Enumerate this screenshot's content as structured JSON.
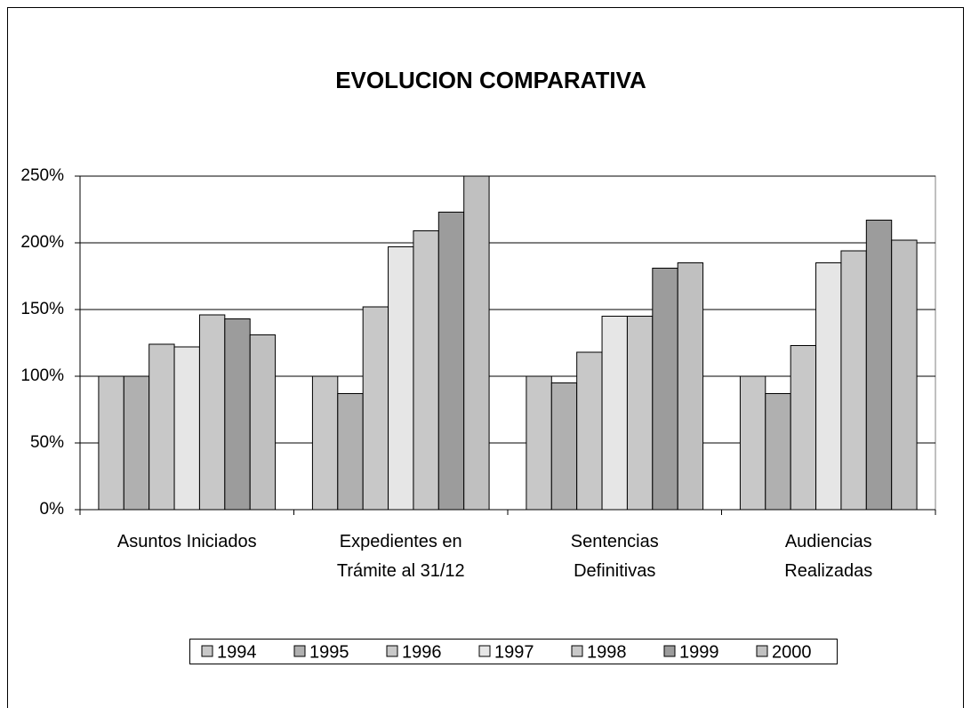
{
  "chart_data": {
    "type": "bar",
    "title": "EVOLUCION COMPARATIVA",
    "categories": [
      [
        "Asuntos Iniciados"
      ],
      [
        "Expedientes en",
        "Trámite al 31/12"
      ],
      [
        "Sentencias",
        "Definitivas"
      ],
      [
        "Audiencias",
        "Realizadas"
      ]
    ],
    "series": [
      {
        "name": "1994",
        "color": "#c8c8c8",
        "values": [
          100,
          100,
          100,
          100
        ]
      },
      {
        "name": "1995",
        "color": "#b0b0b0",
        "values": [
          100,
          87,
          95,
          87
        ]
      },
      {
        "name": "1996",
        "color": "#c8c8c8",
        "values": [
          124,
          152,
          118,
          123
        ]
      },
      {
        "name": "1997",
        "color": "#e6e6e6",
        "values": [
          122,
          197,
          145,
          185
        ]
      },
      {
        "name": "1998",
        "color": "#c8c8c8",
        "values": [
          146,
          209,
          145,
          194
        ]
      },
      {
        "name": "1999",
        "color": "#9c9c9c",
        "values": [
          143,
          223,
          181,
          217
        ]
      },
      {
        "name": "2000",
        "color": "#c0c0c0",
        "values": [
          131,
          250,
          185,
          202
        ]
      }
    ],
    "ylim": [
      0,
      250
    ],
    "yticks": [
      {
        "value": 0,
        "label": "0%"
      },
      {
        "value": 50,
        "label": "50%"
      },
      {
        "value": 100,
        "label": "100%"
      },
      {
        "value": 150,
        "label": "150%"
      },
      {
        "value": 200,
        "label": "200%"
      },
      {
        "value": 250,
        "label": "250%"
      }
    ],
    "grid": true,
    "legend": "bottom"
  }
}
